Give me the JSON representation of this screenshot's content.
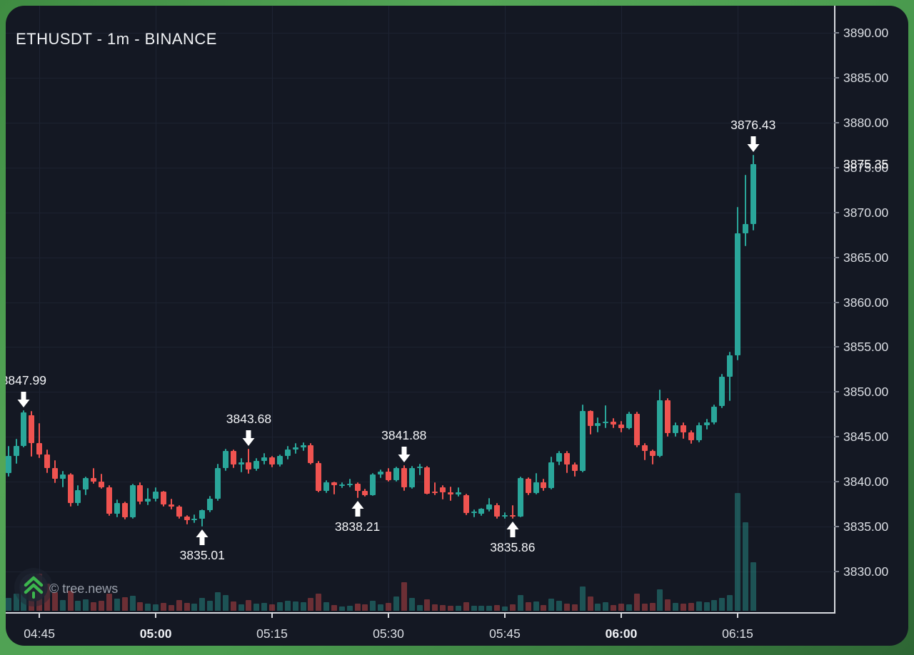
{
  "title": "ETHUSDT - 1m - BINANCE",
  "watermark": {
    "text": "© tree.news"
  },
  "colors": {
    "up": "#2aa69a",
    "down": "#ef5350",
    "vol_up": "rgba(42,166,154,0.42)",
    "vol_down": "rgba(239,83,80,0.40)",
    "accent_teal": "#2aa69a",
    "panel_bg": "#141823",
    "frame_green": "#4c9e50",
    "logo_green": "#3cb54e"
  },
  "price_axis": {
    "labels": [
      "3890.00",
      "3885.00",
      "3880.00",
      "3875.00",
      "3870.00",
      "3865.00",
      "3860.00",
      "3855.00",
      "3850.00",
      "3845.00",
      "3840.00",
      "3835.00",
      "3830.00"
    ],
    "current": {
      "text": "3875.35",
      "price": 3875.35
    }
  },
  "time_axis": {
    "labels": [
      {
        "text": "04:45",
        "bold": false
      },
      {
        "text": "05:00",
        "bold": true
      },
      {
        "text": "05:15",
        "bold": false
      },
      {
        "text": "05:30",
        "bold": false
      },
      {
        "text": "05:45",
        "bold": false
      },
      {
        "text": "06:00",
        "bold": true
      },
      {
        "text": "06:15",
        "bold": false
      }
    ]
  },
  "chart_data": {
    "type": "candlestick",
    "symbol": "ETHUSDT",
    "interval": "1m",
    "exchange": "BINANCE",
    "title": "ETHUSDT - 1m - BINANCE",
    "y_axis_range": [
      3827.5,
      3893.0
    ],
    "grid": true,
    "current_price": 3875.35,
    "candles_format": [
      "time",
      "open",
      "high",
      "low",
      "close",
      "volume"
    ],
    "candles": [
      [
        "04:41",
        3841.0,
        3844.0,
        3840.6,
        3842.9,
        18
      ],
      [
        "04:42",
        3842.9,
        3844.8,
        3842.0,
        3844.0,
        24
      ],
      [
        "04:43",
        3844.0,
        3847.99,
        3843.8,
        3847.7,
        36
      ],
      [
        "04:44",
        3847.4,
        3847.9,
        3842.8,
        3844.3,
        30
      ],
      [
        "04:45",
        3844.3,
        3846.5,
        3842.6,
        3843.0,
        52
      ],
      [
        "04:46",
        3843.0,
        3843.6,
        3841.0,
        3841.5,
        38
      ],
      [
        "04:47",
        3841.5,
        3842.4,
        3839.9,
        3840.3,
        26
      ],
      [
        "04:48",
        3840.3,
        3841.2,
        3839.4,
        3840.8,
        15
      ],
      [
        "04:49",
        3840.8,
        3841.0,
        3837.2,
        3837.6,
        28
      ],
      [
        "04:50",
        3837.6,
        3839.6,
        3837.3,
        3839.1,
        14
      ],
      [
        "04:51",
        3839.1,
        3840.6,
        3838.5,
        3840.4,
        16
      ],
      [
        "04:52",
        3840.4,
        3841.5,
        3839.8,
        3840.0,
        12
      ],
      [
        "04:53",
        3840.0,
        3840.9,
        3839.2,
        3839.4,
        14
      ],
      [
        "04:54",
        3839.4,
        3839.6,
        3836.2,
        3836.4,
        24
      ],
      [
        "04:55",
        3836.4,
        3838.0,
        3836.0,
        3837.6,
        17
      ],
      [
        "04:56",
        3837.6,
        3837.8,
        3835.8,
        3836.0,
        19
      ],
      [
        "04:57",
        3836.0,
        3839.8,
        3835.9,
        3839.6,
        21
      ],
      [
        "04:58",
        3839.6,
        3839.9,
        3837.5,
        3837.8,
        12
      ],
      [
        "04:59",
        3837.8,
        3839.3,
        3837.4,
        3838.1,
        10
      ],
      [
        "05:00",
        3838.1,
        3839.4,
        3837.8,
        3838.9,
        9
      ],
      [
        "05:01",
        3838.9,
        3839.0,
        3837.2,
        3837.5,
        11
      ],
      [
        "05:02",
        3837.5,
        3838.1,
        3836.9,
        3837.2,
        8
      ],
      [
        "05:03",
        3837.2,
        3837.4,
        3835.9,
        3836.1,
        15
      ],
      [
        "05:04",
        3836.1,
        3836.3,
        3835.2,
        3835.7,
        11
      ],
      [
        "05:05",
        3835.7,
        3836.4,
        3835.4,
        3835.9,
        10
      ],
      [
        "05:06",
        3835.9,
        3836.9,
        3835.01,
        3836.8,
        18
      ],
      [
        "05:07",
        3836.8,
        3838.4,
        3836.6,
        3838.1,
        14
      ],
      [
        "05:08",
        3838.1,
        3842.0,
        3837.9,
        3841.5,
        26
      ],
      [
        "05:09",
        3841.5,
        3843.7,
        3841.2,
        3843.4,
        22
      ],
      [
        "05:10",
        3843.4,
        3843.6,
        3841.5,
        3841.9,
        13
      ],
      [
        "05:11",
        3841.9,
        3842.6,
        3841.0,
        3842.2,
        9
      ],
      [
        "05:12",
        3842.2,
        3843.68,
        3840.9,
        3841.4,
        15
      ],
      [
        "05:13",
        3841.4,
        3842.6,
        3841.2,
        3842.3,
        10
      ],
      [
        "05:14",
        3842.3,
        3843.2,
        3841.9,
        3842.7,
        11
      ],
      [
        "05:15",
        3842.7,
        3842.9,
        3841.6,
        3841.9,
        9
      ],
      [
        "05:16",
        3841.9,
        3843.0,
        3841.7,
        3842.9,
        12
      ],
      [
        "05:17",
        3842.9,
        3844.0,
        3842.5,
        3843.6,
        14
      ],
      [
        "05:18",
        3843.6,
        3844.3,
        3843.1,
        3843.8,
        13
      ],
      [
        "05:19",
        3843.8,
        3844.4,
        3843.4,
        3844.1,
        12
      ],
      [
        "05:20",
        3844.1,
        3844.3,
        3841.9,
        3842.1,
        18
      ],
      [
        "05:21",
        3842.1,
        3842.3,
        3838.8,
        3839.0,
        24
      ],
      [
        "05:22",
        3839.0,
        3840.2,
        3838.7,
        3839.9,
        12
      ],
      [
        "05:23",
        3839.9,
        3840.0,
        3838.6,
        3839.6,
        8
      ],
      [
        "05:24",
        3839.6,
        3839.9,
        3839.3,
        3839.7,
        6
      ],
      [
        "05:25",
        3839.7,
        3840.3,
        3839.4,
        3839.8,
        7
      ],
      [
        "05:26",
        3839.8,
        3839.9,
        3838.21,
        3839.0,
        10
      ],
      [
        "05:27",
        3839.0,
        3839.2,
        3838.3,
        3838.5,
        9
      ],
      [
        "05:28",
        3838.5,
        3841.0,
        3838.4,
        3840.8,
        14
      ],
      [
        "05:29",
        3840.8,
        3841.4,
        3840.4,
        3841.1,
        9
      ],
      [
        "05:30",
        3841.1,
        3841.5,
        3840.0,
        3840.2,
        11
      ],
      [
        "05:31",
        3840.2,
        3841.7,
        3840.0,
        3841.5,
        20
      ],
      [
        "05:32",
        3841.5,
        3841.88,
        3839.0,
        3839.4,
        40
      ],
      [
        "05:33",
        3839.4,
        3841.8,
        3839.2,
        3841.5,
        18
      ],
      [
        "05:34",
        3841.5,
        3842.0,
        3840.7,
        3841.7,
        8
      ],
      [
        "05:35",
        3841.6,
        3841.8,
        3838.6,
        3838.7,
        16
      ],
      [
        "05:36",
        3838.9,
        3839.9,
        3838.5,
        3838.8,
        9
      ],
      [
        "05:37",
        3839.4,
        3839.6,
        3838.0,
        3838.8,
        8
      ],
      [
        "05:38",
        3838.8,
        3839.5,
        3837.9,
        3838.6,
        7
      ],
      [
        "05:39",
        3838.6,
        3839.4,
        3838.3,
        3838.8,
        7
      ],
      [
        "05:40",
        3838.5,
        3838.7,
        3836.3,
        3836.5,
        12
      ],
      [
        "05:41",
        3836.5,
        3836.9,
        3836.0,
        3836.7,
        7
      ],
      [
        "05:42",
        3836.4,
        3837.1,
        3836.2,
        3837.0,
        7
      ],
      [
        "05:43",
        3836.9,
        3838.2,
        3836.7,
        3837.5,
        7
      ],
      [
        "05:44",
        3837.4,
        3837.6,
        3835.9,
        3836.1,
        8
      ],
      [
        "05:45",
        3836.1,
        3836.6,
        3835.9,
        3836.3,
        6
      ],
      [
        "05:46",
        3836.3,
        3837.4,
        3835.86,
        3836.1,
        9
      ],
      [
        "05:47",
        3836.1,
        3840.6,
        3836.0,
        3840.4,
        22
      ],
      [
        "05:48",
        3840.3,
        3840.5,
        3838.5,
        3838.7,
        12
      ],
      [
        "05:49",
        3838.7,
        3841.0,
        3838.6,
        3839.9,
        13
      ],
      [
        "05:50",
        3839.9,
        3840.3,
        3839.0,
        3839.3,
        8
      ],
      [
        "05:51",
        3839.3,
        3842.8,
        3839.1,
        3842.2,
        17
      ],
      [
        "05:52",
        3842.2,
        3843.4,
        3841.8,
        3843.2,
        14
      ],
      [
        "05:53",
        3843.2,
        3843.4,
        3841.0,
        3841.9,
        10
      ],
      [
        "05:54",
        3841.9,
        3842.2,
        3840.6,
        3841.2,
        9
      ],
      [
        "05:55",
        3841.2,
        3848.6,
        3841.0,
        3847.9,
        34
      ],
      [
        "05:56",
        3847.9,
        3848.0,
        3845.3,
        3846.2,
        20
      ],
      [
        "05:57",
        3846.2,
        3847.2,
        3845.5,
        3846.5,
        10
      ],
      [
        "05:58",
        3846.5,
        3848.5,
        3846.0,
        3846.7,
        12
      ],
      [
        "05:59",
        3846.7,
        3847.1,
        3846.0,
        3846.4,
        8
      ],
      [
        "06:00",
        3846.4,
        3846.8,
        3845.5,
        3846.0,
        10
      ],
      [
        "06:01",
        3846.0,
        3847.8,
        3845.8,
        3847.6,
        9
      ],
      [
        "06:02",
        3847.6,
        3847.8,
        3843.8,
        3844.1,
        24
      ],
      [
        "06:03",
        3844.1,
        3844.3,
        3842.4,
        3843.4,
        10
      ],
      [
        "06:04",
        3843.4,
        3843.6,
        3841.9,
        3842.9,
        11
      ],
      [
        "06:05",
        3842.9,
        3850.3,
        3842.7,
        3849.1,
        30
      ],
      [
        "06:06",
        3849.1,
        3849.3,
        3845.0,
        3845.4,
        16
      ],
      [
        "06:07",
        3845.4,
        3846.6,
        3845.0,
        3846.3,
        11
      ],
      [
        "06:08",
        3846.3,
        3846.6,
        3844.8,
        3845.5,
        10
      ],
      [
        "06:09",
        3845.5,
        3845.7,
        3844.2,
        3844.6,
        11
      ],
      [
        "06:10",
        3844.6,
        3846.6,
        3844.4,
        3846.3,
        13
      ],
      [
        "06:11",
        3846.3,
        3847.0,
        3845.8,
        3846.6,
        12
      ],
      [
        "06:12",
        3846.6,
        3848.6,
        3846.4,
        3848.4,
        15
      ],
      [
        "06:13",
        3848.4,
        3852.0,
        3848.2,
        3851.7,
        18
      ],
      [
        "06:14",
        3851.7,
        3854.5,
        3849.0,
        3854.1,
        22
      ],
      [
        "06:15",
        3854.1,
        3870.6,
        3853.5,
        3867.7,
        165
      ],
      [
        "06:16",
        3867.7,
        3874.2,
        3866.2,
        3868.7,
        124
      ],
      [
        "06:17",
        3868.7,
        3876.43,
        3868.0,
        3875.35,
        68
      ]
    ],
    "annotations": [
      {
        "text": "3847.99",
        "time": "04:43",
        "dir": "down"
      },
      {
        "text": "3843.68",
        "time": "05:12",
        "dir": "down"
      },
      {
        "text": "3841.88",
        "time": "05:32",
        "dir": "down"
      },
      {
        "text": "3838.21",
        "time": "05:26",
        "dir": "up"
      },
      {
        "text": "3835.01",
        "time": "05:06",
        "dir": "up"
      },
      {
        "text": "3835.86",
        "time": "05:46",
        "dir": "up"
      },
      {
        "text": "3876.43",
        "time": "06:17",
        "dir": "down"
      }
    ]
  }
}
